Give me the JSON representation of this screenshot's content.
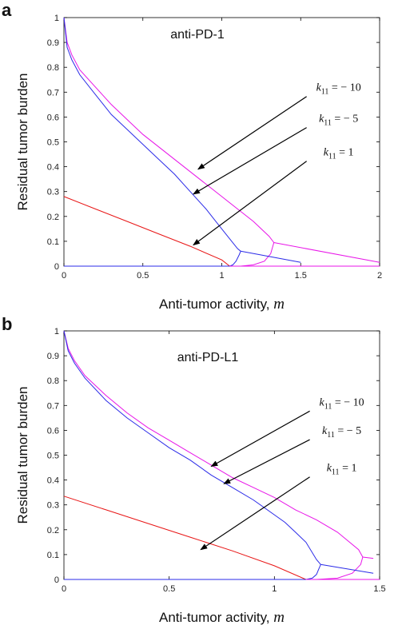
{
  "panels": [
    {
      "label": "a"
    },
    {
      "label": "b"
    }
  ],
  "chart_data": [
    {
      "type": "line",
      "title": "anti-PD-1",
      "xlabel": "Anti-tumor activity,",
      "xlabel_var": "m",
      "ylabel": "Residual tumor burden",
      "xlim": [
        0,
        2
      ],
      "ylim": [
        0,
        1
      ],
      "xticks": [
        0,
        0.5,
        1,
        1.5,
        2
      ],
      "xtick_labels": [
        "0",
        "0.5",
        "1",
        "1.5",
        "2"
      ],
      "yticks": [
        0,
        0.1,
        0.2,
        0.3,
        0.4,
        0.5,
        0.6,
        0.7,
        0.8,
        0.9,
        1
      ],
      "ytick_labels": [
        "0",
        "0.1",
        "0.2",
        "0.3",
        "0.4",
        "0.5",
        "0.6",
        "0.7",
        "0.8",
        "0.9",
        "1"
      ],
      "series": [
        {
          "color": "#e815e8",
          "x": [
            0,
            0.02,
            0.05,
            0.1,
            0.2,
            0.3,
            0.4,
            0.5,
            0.6,
            0.7,
            0.8,
            0.9,
            1.0,
            1.1,
            1.2,
            1.3,
            1.33
          ],
          "y": [
            1.0,
            0.9,
            0.85,
            0.79,
            0.72,
            0.65,
            0.59,
            0.53,
            0.48,
            0.43,
            0.38,
            0.33,
            0.28,
            0.23,
            0.18,
            0.12,
            0.095
          ]
        },
        {
          "color": "#e815e8",
          "x": [
            1.33,
            2.0
          ],
          "y": [
            0.095,
            0.015
          ]
        },
        {
          "color": "#e815e8",
          "x": [
            1.12,
            1.2,
            1.27,
            1.31,
            1.33
          ],
          "y": [
            0.0,
            0.005,
            0.02,
            0.05,
            0.095
          ]
        },
        {
          "color": "#2b2be8",
          "x": [
            0,
            0.02,
            0.05,
            0.1,
            0.2,
            0.3,
            0.4,
            0.5,
            0.6,
            0.7,
            0.8,
            0.9,
            0.95,
            1.0,
            1.05,
            1.1,
            1.12
          ],
          "y": [
            1.0,
            0.88,
            0.83,
            0.77,
            0.69,
            0.61,
            0.55,
            0.49,
            0.43,
            0.37,
            0.3,
            0.23,
            0.19,
            0.15,
            0.11,
            0.07,
            0.06
          ]
        },
        {
          "color": "#2b2be8",
          "x": [
            1.12,
            1.5
          ],
          "y": [
            0.06,
            0.015
          ]
        },
        {
          "color": "#2b2be8",
          "x": [
            1.05,
            1.07,
            1.09,
            1.11,
            1.12
          ],
          "y": [
            0.0,
            0.005,
            0.02,
            0.045,
            0.06
          ]
        },
        {
          "color": "#e81515",
          "x": [
            0,
            0.2,
            0.4,
            0.6,
            0.8,
            1.0,
            1.05
          ],
          "y": [
            0.28,
            0.23,
            0.18,
            0.13,
            0.08,
            0.025,
            0.0
          ]
        },
        {
          "color": "#e815e8",
          "x": [
            0,
            2.0
          ],
          "y": [
            0.0,
            0.0
          ]
        },
        {
          "color": "#2b2be8",
          "x": [
            0,
            1.05
          ],
          "y": [
            0.0,
            0.0
          ]
        }
      ],
      "annotations": [
        {
          "text_var": "k",
          "sub": "11",
          "text_rest": " = − 10",
          "x": 1.74,
          "y": 0.705,
          "arrow_to": [
            0.85,
            0.39
          ]
        },
        {
          "text_var": "k",
          "sub": "11",
          "text_rest": " = − 5",
          "x": 1.74,
          "y": 0.58,
          "arrow_to": [
            0.82,
            0.29
          ]
        },
        {
          "text_var": "k",
          "sub": "11",
          "text_rest": " = 1",
          "x": 1.74,
          "y": 0.445,
          "arrow_to": [
            0.82,
            0.085
          ]
        }
      ]
    },
    {
      "type": "line",
      "title": "anti-PD-L1",
      "xlabel": "Anti-tumor activity,",
      "xlabel_var": "m",
      "ylabel": "Residual tumor burden",
      "xlim": [
        0,
        1.5
      ],
      "ylim": [
        0,
        1
      ],
      "xticks": [
        0,
        0.5,
        1,
        1.5
      ],
      "xtick_labels": [
        "0",
        "0.5",
        "1",
        "1.5"
      ],
      "yticks": [
        0,
        0.1,
        0.2,
        0.3,
        0.4,
        0.5,
        0.6,
        0.7,
        0.8,
        0.9,
        1
      ],
      "ytick_labels": [
        "0",
        "0.1",
        "0.2",
        "0.3",
        "0.4",
        "0.5",
        "0.6",
        "0.7",
        "0.8",
        "0.9",
        "1"
      ],
      "series": [
        {
          "color": "#e815e8",
          "x": [
            0,
            0.02,
            0.05,
            0.1,
            0.2,
            0.3,
            0.4,
            0.5,
            0.6,
            0.7,
            0.8,
            0.9,
            1.0,
            1.1,
            1.2,
            1.3,
            1.4,
            1.42
          ],
          "y": [
            1.0,
            0.93,
            0.88,
            0.82,
            0.74,
            0.67,
            0.61,
            0.56,
            0.51,
            0.46,
            0.41,
            0.37,
            0.33,
            0.28,
            0.24,
            0.19,
            0.12,
            0.09
          ]
        },
        {
          "color": "#e815e8",
          "x": [
            1.42,
            1.47
          ],
          "y": [
            0.09,
            0.085
          ]
        },
        {
          "color": "#e815e8",
          "x": [
            1.2,
            1.3,
            1.37,
            1.41,
            1.42
          ],
          "y": [
            0.0,
            0.005,
            0.025,
            0.06,
            0.09
          ]
        },
        {
          "color": "#2b2be8",
          "x": [
            0,
            0.02,
            0.05,
            0.1,
            0.2,
            0.3,
            0.4,
            0.5,
            0.6,
            0.7,
            0.8,
            0.9,
            1.0,
            1.05,
            1.1,
            1.15,
            1.2,
            1.22
          ],
          "y": [
            1.0,
            0.92,
            0.87,
            0.81,
            0.72,
            0.65,
            0.59,
            0.53,
            0.48,
            0.42,
            0.37,
            0.32,
            0.26,
            0.23,
            0.19,
            0.15,
            0.08,
            0.06
          ]
        },
        {
          "color": "#2b2be8",
          "x": [
            1.22,
            1.47
          ],
          "y": [
            0.06,
            0.025
          ]
        },
        {
          "color": "#2b2be8",
          "x": [
            1.15,
            1.18,
            1.2,
            1.21,
            1.22
          ],
          "y": [
            0.0,
            0.005,
            0.02,
            0.04,
            0.06
          ]
        },
        {
          "color": "#e81515",
          "x": [
            0,
            0.2,
            0.4,
            0.6,
            0.8,
            1.0,
            1.15
          ],
          "y": [
            0.335,
            0.28,
            0.225,
            0.17,
            0.115,
            0.055,
            0.0
          ]
        },
        {
          "color": "#e815e8",
          "x": [
            0,
            1.5
          ],
          "y": [
            0.0,
            0.0
          ]
        },
        {
          "color": "#2b2be8",
          "x": [
            0,
            1.15
          ],
          "y": [
            0.0,
            0.0
          ]
        }
      ],
      "annotations": [
        {
          "text_var": "k",
          "sub": "11",
          "text_rest": " = − 10",
          "x": 1.32,
          "y": 0.7,
          "arrow_to": [
            0.7,
            0.455
          ]
        },
        {
          "text_var": "k",
          "sub": "11",
          "text_rest": " = − 5",
          "x": 1.32,
          "y": 0.585,
          "arrow_to": [
            0.76,
            0.385
          ]
        },
        {
          "text_var": "k",
          "sub": "11",
          "text_rest": " = 1",
          "x": 1.32,
          "y": 0.435,
          "arrow_to": [
            0.65,
            0.12
          ]
        }
      ]
    }
  ]
}
